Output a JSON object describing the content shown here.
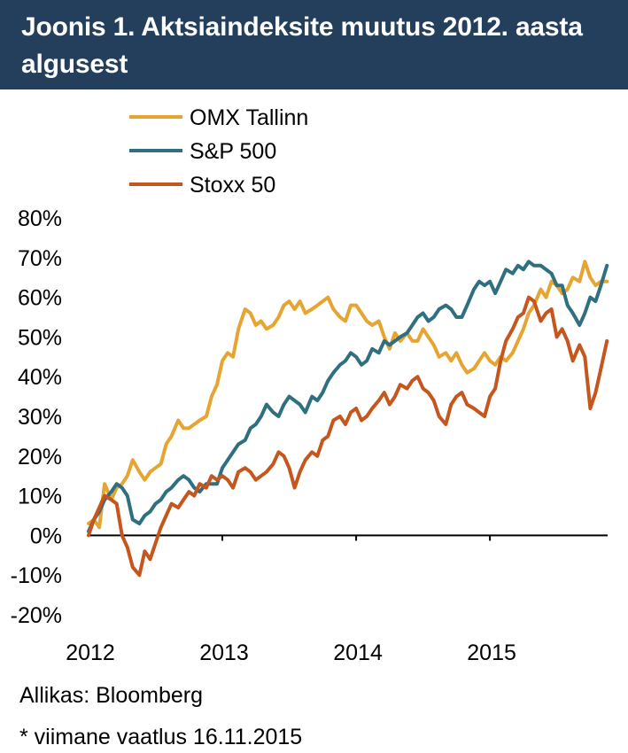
{
  "header": {
    "title": "Joonis 1. Aktsiaindeksite muutus 2012. aasta algusest"
  },
  "footer": {
    "source": "Allikas: Bloomberg",
    "note": "* viimane vaatlus 16.11.2015"
  },
  "colors": {
    "header_bg": "#243f5c",
    "omx": "#e6a532",
    "sp500": "#2f6f80",
    "stoxx": "#c5561d"
  },
  "chart_data": {
    "type": "line",
    "title": "Joonis 1. Aktsiaindeksite muutus 2012. aasta algusest",
    "xlabel": "",
    "ylabel": "",
    "xlim": [
      2012.0,
      2015.88
    ],
    "ylim": [
      -20,
      80
    ],
    "yticks": [
      -20,
      -10,
      0,
      10,
      20,
      30,
      40,
      50,
      60,
      70,
      80
    ],
    "ytick_labels": [
      "-20%",
      "-10%",
      "0%",
      "10%",
      "20%",
      "30%",
      "40%",
      "50%",
      "60%",
      "70%",
      "80%"
    ],
    "xticks": [
      2012,
      2013,
      2014,
      2015
    ],
    "xtick_labels": [
      "2012",
      "2013",
      "2014",
      "2015"
    ],
    "grid": true,
    "legend_position": "top-left",
    "series": [
      {
        "name": "OMX Tallinn",
        "color": "#e6a532",
        "x": [
          2012.0,
          2012.04,
          2012.08,
          2012.12,
          2012.17,
          2012.21,
          2012.25,
          2012.29,
          2012.33,
          2012.38,
          2012.42,
          2012.46,
          2012.5,
          2012.54,
          2012.58,
          2012.62,
          2012.67,
          2012.71,
          2012.75,
          2012.79,
          2012.83,
          2012.88,
          2012.92,
          2012.96,
          2013.0,
          2013.04,
          2013.08,
          2013.12,
          2013.17,
          2013.21,
          2013.25,
          2013.29,
          2013.33,
          2013.38,
          2013.42,
          2013.46,
          2013.5,
          2013.54,
          2013.58,
          2013.62,
          2013.67,
          2013.71,
          2013.75,
          2013.79,
          2013.83,
          2013.88,
          2013.92,
          2013.96,
          2014.0,
          2014.04,
          2014.08,
          2014.12,
          2014.17,
          2014.21,
          2014.25,
          2014.29,
          2014.33,
          2014.38,
          2014.42,
          2014.46,
          2014.5,
          2014.54,
          2014.58,
          2014.62,
          2014.67,
          2014.71,
          2014.75,
          2014.79,
          2014.83,
          2014.88,
          2014.92,
          2014.96,
          2015.0,
          2015.04,
          2015.08,
          2015.12,
          2015.17,
          2015.21,
          2015.25,
          2015.29,
          2015.33,
          2015.38,
          2015.42,
          2015.46,
          2015.5,
          2015.54,
          2015.58,
          2015.62,
          2015.67,
          2015.71,
          2015.75,
          2015.79,
          2015.83,
          2015.875
        ],
        "values": [
          3,
          4,
          2,
          13,
          9,
          12,
          13,
          15,
          19,
          16,
          14,
          16,
          17,
          18,
          23,
          25,
          29,
          27,
          27,
          28,
          29,
          30,
          35,
          38,
          44,
          46,
          45,
          52,
          57,
          56,
          53,
          54,
          52,
          53,
          55,
          58,
          59,
          57,
          59,
          56,
          57,
          58,
          59,
          60,
          57,
          55,
          54,
          58,
          58,
          56,
          54,
          53,
          54,
          50,
          47,
          51,
          49,
          51,
          49,
          49,
          52,
          50,
          48,
          45,
          46,
          44,
          46,
          43,
          41,
          42,
          44,
          46,
          44,
          43,
          45,
          44,
          46,
          49,
          52,
          56,
          58,
          62,
          60,
          64,
          63,
          61,
          62,
          65,
          64,
          69,
          65,
          63,
          64,
          64
        ]
      },
      {
        "name": "S&P 500",
        "color": "#2f6f80",
        "x": [
          2012.0,
          2012.04,
          2012.08,
          2012.12,
          2012.17,
          2012.21,
          2012.25,
          2012.29,
          2012.33,
          2012.38,
          2012.42,
          2012.46,
          2012.5,
          2012.54,
          2012.58,
          2012.62,
          2012.67,
          2012.71,
          2012.75,
          2012.79,
          2012.83,
          2012.88,
          2012.92,
          2012.96,
          2013.0,
          2013.04,
          2013.08,
          2013.12,
          2013.17,
          2013.21,
          2013.25,
          2013.29,
          2013.33,
          2013.38,
          2013.42,
          2013.46,
          2013.5,
          2013.54,
          2013.58,
          2013.62,
          2013.67,
          2013.71,
          2013.75,
          2013.79,
          2013.83,
          2013.88,
          2013.92,
          2013.96,
          2014.0,
          2014.04,
          2014.08,
          2014.12,
          2014.17,
          2014.21,
          2014.25,
          2014.29,
          2014.33,
          2014.38,
          2014.42,
          2014.46,
          2014.5,
          2014.54,
          2014.58,
          2014.62,
          2014.67,
          2014.71,
          2014.75,
          2014.79,
          2014.83,
          2014.88,
          2014.92,
          2014.96,
          2015.0,
          2015.04,
          2015.08,
          2015.12,
          2015.17,
          2015.21,
          2015.25,
          2015.29,
          2015.33,
          2015.38,
          2015.42,
          2015.46,
          2015.5,
          2015.54,
          2015.58,
          2015.62,
          2015.67,
          2015.71,
          2015.75,
          2015.79,
          2015.83,
          2015.875
        ],
        "values": [
          1,
          4,
          6,
          9,
          11,
          13,
          12,
          10,
          4,
          3,
          5,
          6,
          8,
          9,
          11,
          12,
          14,
          15,
          14,
          12,
          11,
          13,
          13,
          13,
          17,
          19,
          21,
          23,
          24,
          27,
          28,
          30,
          33,
          31,
          30,
          33,
          35,
          34,
          33,
          31,
          35,
          34,
          36,
          39,
          41,
          43,
          44,
          46,
          45,
          43,
          44,
          47,
          46,
          49,
          48,
          49,
          50,
          51,
          53,
          55,
          56,
          54,
          55,
          57,
          58,
          57,
          55,
          55,
          58,
          62,
          64,
          63,
          64,
          61,
          64,
          67,
          66,
          68,
          67,
          69,
          68,
          68,
          67,
          66,
          63,
          63,
          58,
          56,
          53,
          56,
          60,
          59,
          63,
          68
        ]
      },
      {
        "name": "Stoxx 50",
        "color": "#c5561d",
        "x": [
          2012.0,
          2012.04,
          2012.08,
          2012.12,
          2012.17,
          2012.21,
          2012.25,
          2012.29,
          2012.33,
          2012.38,
          2012.42,
          2012.46,
          2012.5,
          2012.54,
          2012.58,
          2012.62,
          2012.67,
          2012.71,
          2012.75,
          2012.79,
          2012.83,
          2012.88,
          2012.92,
          2012.96,
          2013.0,
          2013.04,
          2013.08,
          2013.12,
          2013.17,
          2013.21,
          2013.25,
          2013.29,
          2013.33,
          2013.38,
          2013.42,
          2013.46,
          2013.5,
          2013.54,
          2013.58,
          2013.62,
          2013.67,
          2013.71,
          2013.75,
          2013.79,
          2013.83,
          2013.88,
          2013.92,
          2013.96,
          2014.0,
          2014.04,
          2014.08,
          2014.12,
          2014.17,
          2014.21,
          2014.25,
          2014.29,
          2014.33,
          2014.38,
          2014.42,
          2014.46,
          2014.5,
          2014.54,
          2014.58,
          2014.62,
          2014.67,
          2014.71,
          2014.75,
          2014.79,
          2014.83,
          2014.88,
          2014.92,
          2014.96,
          2015.0,
          2015.04,
          2015.08,
          2015.12,
          2015.17,
          2015.21,
          2015.25,
          2015.29,
          2015.33,
          2015.38,
          2015.42,
          2015.46,
          2015.5,
          2015.54,
          2015.58,
          2015.62,
          2015.67,
          2015.71,
          2015.75,
          2015.79,
          2015.83,
          2015.875
        ],
        "values": [
          0,
          4,
          7,
          10,
          9,
          8,
          0,
          -3,
          -8,
          -10,
          -4,
          -6,
          -2,
          2,
          5,
          8,
          7,
          9,
          11,
          10,
          13,
          12,
          15,
          14,
          15,
          14,
          12,
          16,
          17,
          16,
          14,
          15,
          16,
          18,
          21,
          20,
          17,
          12,
          16,
          19,
          21,
          20,
          24,
          25,
          29,
          30,
          28,
          31,
          32,
          29,
          30,
          32,
          34,
          36,
          33,
          35,
          38,
          37,
          39,
          40,
          37,
          36,
          34,
          30,
          28,
          33,
          35,
          36,
          33,
          32,
          31,
          30,
          35,
          37,
          44,
          49,
          52,
          55,
          56,
          60,
          59,
          54,
          56,
          57,
          50,
          52,
          49,
          44,
          48,
          45,
          32,
          36,
          42,
          49
        ]
      }
    ]
  }
}
